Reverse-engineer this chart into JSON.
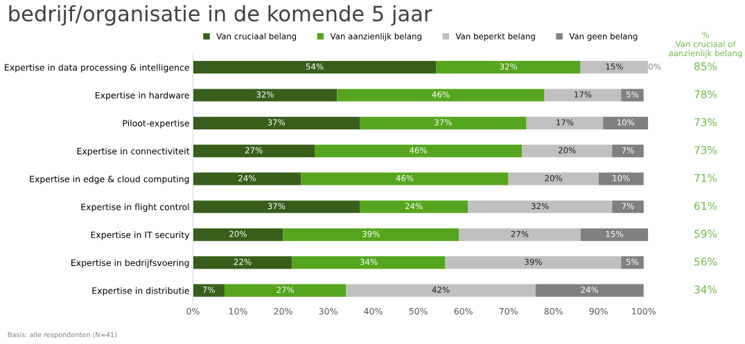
{
  "chart_data": {
    "type": "bar",
    "orientation": "horizontal",
    "stacked": true,
    "title": "bedrijf/organisatie in de komende 5 jaar",
    "categories": [
      "Expertise in data processing & intelligence",
      "Expertise in hardware",
      "Piloot-expertise",
      "Expertise in connectiviteit",
      "Expertise in edge & cloud computing",
      "Expertise in flight control",
      "Expertise in IT security",
      "Expertise in bedrijfsvoering",
      "Expertise in distributie"
    ],
    "series": [
      {
        "name": "Van cruciaal belang",
        "color": "#375f1b",
        "values": [
          54,
          32,
          37,
          27,
          24,
          37,
          20,
          22,
          7
        ],
        "value_labels": [
          "54%",
          "32%",
          "37%",
          "27%",
          "24%",
          "37%",
          "20%",
          "22%",
          "7%"
        ]
      },
      {
        "name": "Van aanzienlijk belang",
        "color": "#56a51e",
        "values": [
          32,
          46,
          37,
          46,
          46,
          24,
          39,
          34,
          27
        ],
        "value_labels": [
          "32%",
          "46%",
          "37%",
          "46%",
          "46%",
          "24%",
          "39%",
          "34%",
          "27%"
        ]
      },
      {
        "name": "Van beperkt belang",
        "color": "#c0c0c0",
        "values": [
          15,
          17,
          17,
          20,
          20,
          32,
          27,
          39,
          42
        ],
        "value_labels": [
          "15%",
          "17%",
          "17%",
          "20%",
          "20%",
          "32%",
          "27%",
          "39%",
          "42%"
        ]
      },
      {
        "name": "Van geen belang",
        "color": "#808080",
        "values": [
          0,
          5,
          10,
          7,
          10,
          7,
          15,
          5,
          24
        ],
        "value_labels": [
          "0%",
          "5%",
          "10%",
          "7%",
          "10%",
          "7%",
          "15%",
          "5%",
          "24%"
        ]
      }
    ],
    "xlim": [
      0,
      101
    ],
    "xticks": [
      {
        "value": 0,
        "label": "0%"
      },
      {
        "value": 10,
        "label": "10%"
      },
      {
        "value": 20,
        "label": "20%"
      },
      {
        "value": 30,
        "label": "30%"
      },
      {
        "value": 40,
        "label": "40%"
      },
      {
        "value": 50,
        "label": "50%"
      },
      {
        "value": 60,
        "label": "60%"
      },
      {
        "value": 70,
        "label": "70%"
      },
      {
        "value": 80,
        "label": "80%"
      },
      {
        "value": 90,
        "label": "90%"
      },
      {
        "value": 100,
        "label": "100%"
      }
    ],
    "grid": false,
    "legend": "top",
    "annotations": [
      "Basis: alle respondenten (N=41)",
      "%\nVan cruciaal of\naanzienlijk belang",
      "85%",
      "78%",
      "73%",
      "73%",
      "71%",
      "61%",
      "59%",
      "56%",
      "34%"
    ]
  }
}
